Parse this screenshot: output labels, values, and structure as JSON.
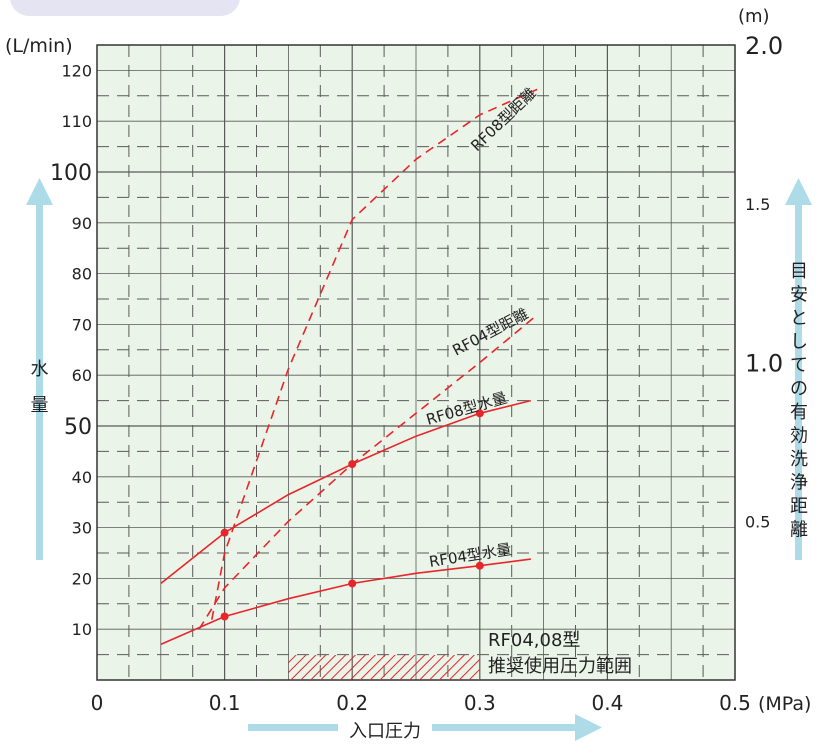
{
  "colors": {
    "plot_bg": "#ebf4e8",
    "grid": "#5a5a5a",
    "curve": "#e8262a",
    "arrow": "#aedbe8",
    "text": "#222222"
  },
  "chart_data": {
    "type": "line",
    "x": {
      "label": "入口圧力",
      "unit": "(MPa)",
      "range": [
        0,
        0.5
      ],
      "ticks": [
        "0",
        "0.1",
        "0.2",
        "0.3",
        "0.4",
        "0.5"
      ]
    },
    "y_left": {
      "label": "水量",
      "unit": "(L/min)",
      "range": [
        0,
        125
      ],
      "ticks": [
        "10",
        "20",
        "30",
        "40",
        "50",
        "60",
        "70",
        "80",
        "90",
        "100",
        "110",
        "120"
      ]
    },
    "y_right": {
      "label": "目安としての有効洗浄距離",
      "unit": "(m)",
      "range": [
        0,
        2.0
      ],
      "ticks": [
        "0.5",
        "1.0",
        "1.5",
        "2.0"
      ]
    },
    "grid": true,
    "series": [
      {
        "name": "RF08型距離",
        "axis": "right",
        "style": "dashed",
        "x": [
          0.09,
          0.1,
          0.15,
          0.2,
          0.25,
          0.3,
          0.345
        ],
        "y": [
          0.19,
          0.4,
          0.98,
          1.45,
          1.64,
          1.78,
          1.86
        ]
      },
      {
        "name": "RF04型距離",
        "axis": "right",
        "style": "dashed",
        "x": [
          0.08,
          0.1,
          0.15,
          0.2,
          0.25,
          0.3,
          0.345
        ],
        "y": [
          0.16,
          0.29,
          0.5,
          0.68,
          0.84,
          1.0,
          1.15
        ]
      },
      {
        "name": "RF08型水量",
        "axis": "left",
        "style": "solid",
        "x": [
          0.05,
          0.1,
          0.15,
          0.2,
          0.25,
          0.3,
          0.34
        ],
        "y": [
          19,
          29,
          36.5,
          42.5,
          48,
          52.5,
          55
        ],
        "markers": [
          [
            0.1,
            29
          ],
          [
            0.2,
            42.5
          ],
          [
            0.3,
            52.5
          ]
        ]
      },
      {
        "name": "RF04型水量",
        "axis": "left",
        "style": "solid",
        "x": [
          0.05,
          0.1,
          0.15,
          0.2,
          0.25,
          0.3,
          0.34
        ],
        "y": [
          7,
          12.5,
          16,
          19,
          21,
          22.5,
          23.8
        ],
        "markers": [
          [
            0.1,
            12.5
          ],
          [
            0.2,
            19
          ],
          [
            0.3,
            22.5
          ]
        ]
      }
    ],
    "annotations": {
      "range_line1": "RF04,08型",
      "range_line2": "推奨使用圧力範囲",
      "range_x": [
        0.15,
        0.3
      ]
    }
  }
}
